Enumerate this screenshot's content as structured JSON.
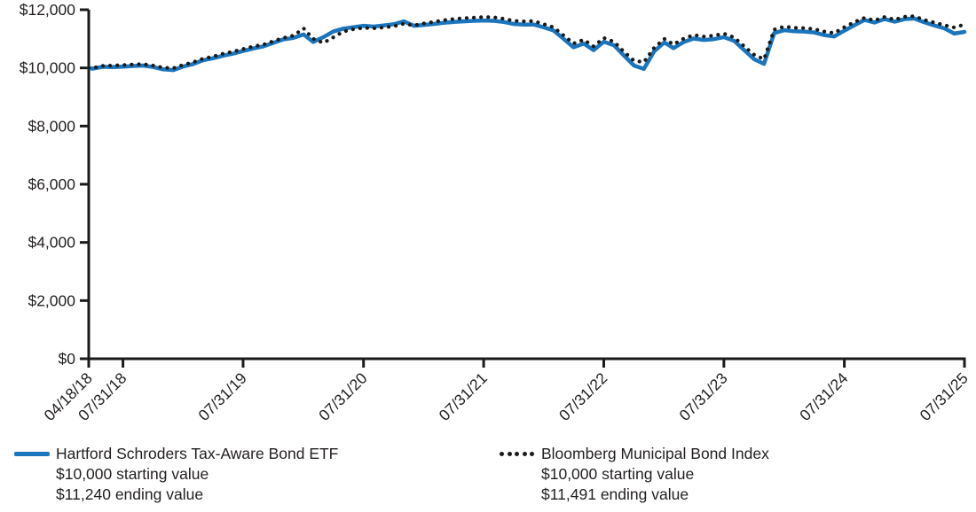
{
  "chart_data": {
    "type": "line",
    "title": "",
    "xlabel": "",
    "ylabel": "",
    "ylim": [
      0,
      12000
    ],
    "grid": false,
    "legend_position": "bottom",
    "axis_color": "#1a1a1a",
    "y_ticks": [
      {
        "value": 0,
        "label": "$0"
      },
      {
        "value": 2000,
        "label": "$2,000"
      },
      {
        "value": 4000,
        "label": "$4,000"
      },
      {
        "value": 6000,
        "label": "$6,000"
      },
      {
        "value": 8000,
        "label": "$8,000"
      },
      {
        "value": 10000,
        "label": "$10,000"
      },
      {
        "value": 12000,
        "label": "$12,000"
      }
    ],
    "x_ticks": [
      {
        "date": "2018-04-18",
        "label": "04/18/18"
      },
      {
        "date": "2018-07-31",
        "label": "07/31/18"
      },
      {
        "date": "2019-07-31",
        "label": "07/31/19"
      },
      {
        "date": "2020-07-31",
        "label": "07/31/20"
      },
      {
        "date": "2021-07-31",
        "label": "07/31/21"
      },
      {
        "date": "2022-07-31",
        "label": "07/31/22"
      },
      {
        "date": "2023-07-31",
        "label": "07/31/23"
      },
      {
        "date": "2024-07-31",
        "label": "07/31/24"
      },
      {
        "date": "2025-07-31",
        "label": "07/31/25"
      }
    ],
    "x_start": "2018-04-18",
    "x_end": "2025-07-31",
    "dates": [
      "2018-04-18",
      "2018-04-30",
      "2018-05-31",
      "2018-06-30",
      "2018-07-31",
      "2018-08-31",
      "2018-09-30",
      "2018-10-31",
      "2018-11-30",
      "2018-12-31",
      "2019-01-31",
      "2019-02-28",
      "2019-03-31",
      "2019-04-30",
      "2019-05-31",
      "2019-06-30",
      "2019-07-31",
      "2019-08-31",
      "2019-09-30",
      "2019-10-31",
      "2019-11-30",
      "2019-12-31",
      "2020-01-31",
      "2020-02-29",
      "2020-03-31",
      "2020-04-30",
      "2020-05-31",
      "2020-06-30",
      "2020-07-31",
      "2020-08-31",
      "2020-09-30",
      "2020-10-31",
      "2020-11-30",
      "2020-12-31",
      "2021-01-31",
      "2021-02-28",
      "2021-03-31",
      "2021-04-30",
      "2021-05-31",
      "2021-06-30",
      "2021-07-31",
      "2021-08-31",
      "2021-09-30",
      "2021-10-31",
      "2021-11-30",
      "2021-12-31",
      "2022-01-31",
      "2022-02-28",
      "2022-03-31",
      "2022-04-30",
      "2022-05-31",
      "2022-06-30",
      "2022-07-31",
      "2022-08-31",
      "2022-09-30",
      "2022-10-31",
      "2022-11-30",
      "2022-12-31",
      "2023-01-31",
      "2023-02-28",
      "2023-03-31",
      "2023-04-30",
      "2023-05-31",
      "2023-06-30",
      "2023-07-31",
      "2023-08-31",
      "2023-09-30",
      "2023-10-31",
      "2023-11-30",
      "2023-12-31",
      "2024-01-31",
      "2024-02-29",
      "2024-03-31",
      "2024-04-30",
      "2024-05-31",
      "2024-06-30",
      "2024-07-31",
      "2024-08-31",
      "2024-09-30",
      "2024-10-31",
      "2024-11-30",
      "2024-12-31",
      "2025-01-31",
      "2025-02-28",
      "2025-03-31",
      "2025-04-30",
      "2025-05-31",
      "2025-06-30",
      "2025-07-31"
    ],
    "series": [
      {
        "name": "Hartford Schroders Tax-Aware Bond ETF",
        "color": "#1b75bc",
        "line_style": "solid",
        "starting_label": "$10,000 starting value",
        "ending_label": "$11,240 ending value",
        "starting_value": 10000,
        "ending_value": 11240,
        "values": [
          10000,
          9975,
          10040,
          10030,
          10045,
          10065,
          10080,
          10030,
          9950,
          9925,
          10050,
          10130,
          10260,
          10330,
          10420,
          10490,
          10580,
          10670,
          10740,
          10860,
          10980,
          11030,
          11150,
          10890,
          11060,
          11250,
          11350,
          11400,
          11450,
          11420,
          11460,
          11500,
          11600,
          11450,
          11480,
          11510,
          11550,
          11580,
          11600,
          11620,
          11630,
          11620,
          11580,
          11510,
          11490,
          11490,
          11390,
          11290,
          11000,
          10710,
          10840,
          10610,
          10900,
          10780,
          10430,
          10080,
          9970,
          10570,
          10880,
          10680,
          10890,
          11010,
          10960,
          10990,
          11060,
          10930,
          10620,
          10300,
          10140,
          11200,
          11300,
          11260,
          11250,
          11220,
          11130,
          11080,
          11280,
          11470,
          11650,
          11560,
          11680,
          11590,
          11680,
          11700,
          11570,
          11460,
          11360,
          11180,
          11240
        ]
      },
      {
        "name": "Bloomberg Municipal Bond Index",
        "color": "#1a1a1a",
        "line_style": "dotted",
        "starting_label": "$10,000 starting value",
        "ending_label": "$11,491 ending value",
        "starting_value": 10000,
        "ending_value": 11491,
        "values": [
          10000,
          10000,
          10070,
          10080,
          10100,
          10120,
          10130,
          10080,
          10010,
          9990,
          10110,
          10190,
          10320,
          10390,
          10490,
          10560,
          10650,
          10740,
          10800,
          10920,
          11030,
          11110,
          11360,
          11000,
          10860,
          11050,
          11250,
          11330,
          11380,
          11360,
          11390,
          11430,
          11520,
          11460,
          11530,
          11580,
          11640,
          11680,
          11710,
          11730,
          11750,
          11740,
          11690,
          11620,
          11600,
          11610,
          11500,
          11400,
          11120,
          10840,
          10970,
          10740,
          11030,
          10900,
          10560,
          10250,
          10200,
          10690,
          11000,
          10810,
          11010,
          11130,
          11080,
          11110,
          11180,
          11050,
          10750,
          10450,
          10300,
          11320,
          11420,
          11380,
          11370,
          11340,
          11250,
          11200,
          11400,
          11580,
          11720,
          11630,
          11750,
          11660,
          11760,
          11780,
          11650,
          11560,
          11470,
          11390,
          11491
        ]
      }
    ]
  }
}
